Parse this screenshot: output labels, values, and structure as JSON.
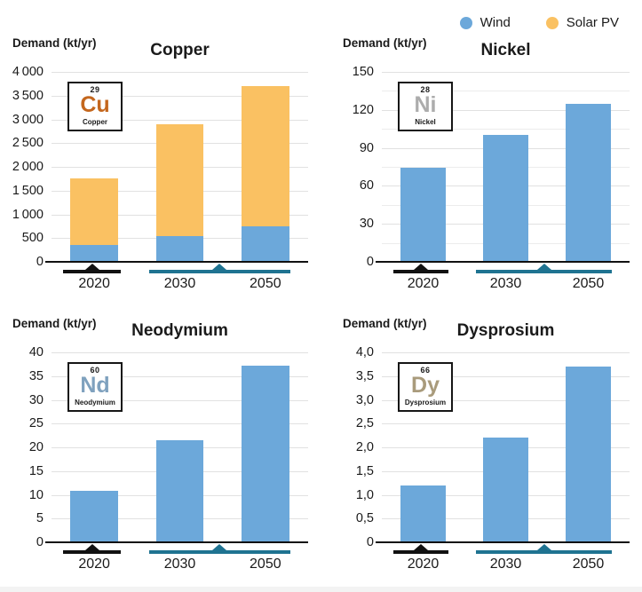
{
  "legend": {
    "items": [
      {
        "label": "Wind",
        "color": "#6CA8DA"
      },
      {
        "label": "Solar PV",
        "color": "#FAC162"
      }
    ]
  },
  "axis": {
    "line_color": "#111111",
    "gridline_color": "#E1E1E1",
    "marker_2020_color": "#111111",
    "marker_future_color": "#1F7391"
  },
  "chart_data": [
    {
      "type": "bar",
      "stacked": true,
      "title": "Copper",
      "ylabel": "Demand (kt/yr)",
      "categories": [
        "2020",
        "2030",
        "2050"
      ],
      "series": [
        {
          "name": "Wind",
          "color": "#6CA8DA",
          "values": [
            350,
            550,
            750
          ]
        },
        {
          "name": "Solar PV",
          "color": "#FAC162",
          "values": [
            1400,
            2350,
            2950
          ]
        }
      ],
      "ylim": [
        0,
        4000
      ],
      "yticks": [
        {
          "v": 0,
          "label": "0"
        },
        {
          "v": 500,
          "label": "500"
        },
        {
          "v": 1000,
          "label": "1 000"
        },
        {
          "v": 1500,
          "label": "1 500"
        },
        {
          "v": 2000,
          "label": "2 000"
        },
        {
          "v": 2500,
          "label": "2 500"
        },
        {
          "v": 3000,
          "label": "3 000"
        },
        {
          "v": 3500,
          "label": "3 500"
        },
        {
          "v": 4000,
          "label": "4 000"
        }
      ],
      "element": {
        "number": "29",
        "symbol": "Cu",
        "name": "Copper",
        "symbol_color": "#C4671E"
      }
    },
    {
      "type": "bar",
      "stacked": false,
      "title": "Nickel",
      "ylabel": "Demand (kt/yr)",
      "categories": [
        "2020",
        "2030",
        "2050"
      ],
      "series": [
        {
          "name": "Wind",
          "color": "#6CA8DA",
          "values": [
            74,
            100,
            125
          ]
        }
      ],
      "ylim": [
        0,
        150
      ],
      "yticks": [
        {
          "v": 0,
          "label": "0"
        },
        {
          "v": 15,
          "label": ""
        },
        {
          "v": 30,
          "label": "30"
        },
        {
          "v": 45,
          "label": ""
        },
        {
          "v": 60,
          "label": "60"
        },
        {
          "v": 75,
          "label": ""
        },
        {
          "v": 90,
          "label": "90"
        },
        {
          "v": 105,
          "label": ""
        },
        {
          "v": 120,
          "label": "120"
        },
        {
          "v": 135,
          "label": ""
        },
        {
          "v": 150,
          "label": "150"
        }
      ],
      "element": {
        "number": "28",
        "symbol": "Ni",
        "name": "Nickel",
        "symbol_color": "#ACACAC"
      }
    },
    {
      "type": "bar",
      "stacked": false,
      "title": "Neodymium",
      "ylabel": "Demand (kt/yr)",
      "categories": [
        "2020",
        "2030",
        "2050"
      ],
      "series": [
        {
          "name": "Wind",
          "color": "#6CA8DA",
          "values": [
            10.8,
            21.5,
            37.2
          ]
        }
      ],
      "ylim": [
        0,
        40
      ],
      "yticks": [
        {
          "v": 0,
          "label": "0"
        },
        {
          "v": 5,
          "label": "5"
        },
        {
          "v": 10,
          "label": "10"
        },
        {
          "v": 15,
          "label": "15"
        },
        {
          "v": 20,
          "label": "20"
        },
        {
          "v": 25,
          "label": "25"
        },
        {
          "v": 30,
          "label": "30"
        },
        {
          "v": 35,
          "label": "35"
        },
        {
          "v": 40,
          "label": "40"
        }
      ],
      "element": {
        "number": "60",
        "symbol": "Nd",
        "name": "Neodymium",
        "symbol_color": "#7FA1BE"
      }
    },
    {
      "type": "bar",
      "stacked": false,
      "title": "Dysprosium",
      "ylabel": "Demand (kt/yr)",
      "categories": [
        "2020",
        "2030",
        "2050"
      ],
      "series": [
        {
          "name": "Wind",
          "color": "#6CA8DA",
          "values": [
            1.2,
            2.2,
            3.7
          ]
        }
      ],
      "ylim": [
        0,
        4
      ],
      "yticks": [
        {
          "v": 0,
          "label": "0"
        },
        {
          "v": 0.5,
          "label": "0,5"
        },
        {
          "v": 1,
          "label": "1,0"
        },
        {
          "v": 1.5,
          "label": "1,5"
        },
        {
          "v": 2,
          "label": "2,0"
        },
        {
          "v": 2.5,
          "label": "2,5"
        },
        {
          "v": 3,
          "label": "3,0"
        },
        {
          "v": 3.5,
          "label": "3,5"
        },
        {
          "v": 4,
          "label": "4,0"
        }
      ],
      "element": {
        "number": "66",
        "symbol": "Dy",
        "name": "Dysprosium",
        "symbol_color": "#A99B7C"
      }
    }
  ]
}
